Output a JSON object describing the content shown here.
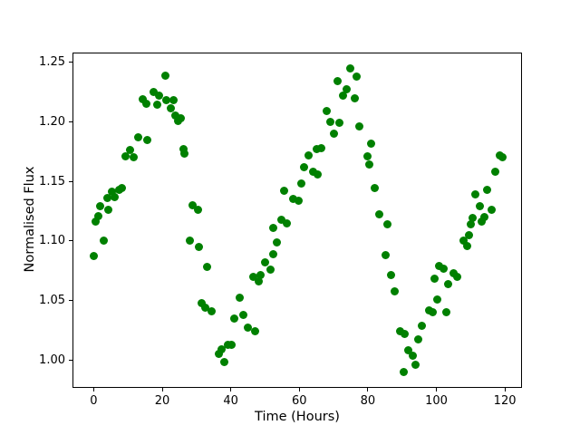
{
  "chart_data": {
    "type": "scatter",
    "title": "",
    "xlabel": "Time (Hours)",
    "ylabel": "Normalised Flux",
    "marker_color": "#008000",
    "marker_diameter_px": 9,
    "grid": false,
    "legend": null,
    "xlim": [
      -6.2,
      125.0
    ],
    "ylim": [
      0.977,
      1.2585
    ],
    "xticks": [
      0,
      20,
      40,
      60,
      80,
      100,
      120
    ],
    "xtick_labels": [
      "0",
      "20",
      "40",
      "60",
      "80",
      "100",
      "120"
    ],
    "yticks": [
      1.0,
      1.05,
      1.1,
      1.15,
      1.2,
      1.25
    ],
    "ytick_labels": [
      "1.00",
      "1.05",
      "1.10",
      "1.15",
      "1.20",
      "1.25"
    ],
    "x_units": "hours",
    "points": [
      [
        0.0,
        1.087
      ],
      [
        0.6,
        1.116
      ],
      [
        1.3,
        1.121
      ],
      [
        1.9,
        1.129
      ],
      [
        2.9,
        1.1
      ],
      [
        3.9,
        1.136
      ],
      [
        4.3,
        1.126
      ],
      [
        5.2,
        1.141
      ],
      [
        6.2,
        1.137
      ],
      [
        7.5,
        1.143
      ],
      [
        8.2,
        1.144
      ],
      [
        9.4,
        1.171
      ],
      [
        10.5,
        1.176
      ],
      [
        11.6,
        1.17
      ],
      [
        13.1,
        1.187
      ],
      [
        14.3,
        1.219
      ],
      [
        15.3,
        1.215
      ],
      [
        15.6,
        1.185
      ],
      [
        17.5,
        1.225
      ],
      [
        18.5,
        1.214
      ],
      [
        19.0,
        1.222
      ],
      [
        20.8,
        1.239
      ],
      [
        21.3,
        1.218
      ],
      [
        22.4,
        1.211
      ],
      [
        23.2,
        1.218
      ],
      [
        23.9,
        1.205
      ],
      [
        24.7,
        1.201
      ],
      [
        25.4,
        1.203
      ],
      [
        26.1,
        1.177
      ],
      [
        26.5,
        1.173
      ],
      [
        28.0,
        1.1
      ],
      [
        28.9,
        1.13
      ],
      [
        30.4,
        1.126
      ],
      [
        30.6,
        1.095
      ],
      [
        31.5,
        1.048
      ],
      [
        32.6,
        1.044
      ],
      [
        33.0,
        1.078
      ],
      [
        34.4,
        1.041
      ],
      [
        36.5,
        1.005
      ],
      [
        37.2,
        1.009
      ],
      [
        38.1,
        0.998
      ],
      [
        39.1,
        1.013
      ],
      [
        40.3,
        1.013
      ],
      [
        41.0,
        1.035
      ],
      [
        42.5,
        1.052
      ],
      [
        43.6,
        1.038
      ],
      [
        45.1,
        1.027
      ],
      [
        46.7,
        1.07
      ],
      [
        47.1,
        1.024
      ],
      [
        48.1,
        1.066
      ],
      [
        48.7,
        1.071
      ],
      [
        50.0,
        1.082
      ],
      [
        51.5,
        1.076
      ],
      [
        52.3,
        1.111
      ],
      [
        52.5,
        1.089
      ],
      [
        53.5,
        1.099
      ],
      [
        54.7,
        1.118
      ],
      [
        55.5,
        1.142
      ],
      [
        56.4,
        1.115
      ],
      [
        58.3,
        1.135
      ],
      [
        59.7,
        1.134
      ],
      [
        60.6,
        1.148
      ],
      [
        61.3,
        1.162
      ],
      [
        62.8,
        1.172
      ],
      [
        63.9,
        1.158
      ],
      [
        65.1,
        1.177
      ],
      [
        65.4,
        1.156
      ],
      [
        66.4,
        1.178
      ],
      [
        67.9,
        1.209
      ],
      [
        69.0,
        1.2
      ],
      [
        70.1,
        1.19
      ],
      [
        71.3,
        1.234
      ],
      [
        71.6,
        1.199
      ],
      [
        72.8,
        1.222
      ],
      [
        73.9,
        1.227
      ],
      [
        74.9,
        1.245
      ],
      [
        76.2,
        1.22
      ],
      [
        76.7,
        1.238
      ],
      [
        77.6,
        1.196
      ],
      [
        80.0,
        1.171
      ],
      [
        80.4,
        1.164
      ],
      [
        80.9,
        1.182
      ],
      [
        82.0,
        1.144
      ],
      [
        83.3,
        1.122
      ],
      [
        85.1,
        1.088
      ],
      [
        85.8,
        1.114
      ],
      [
        86.9,
        1.071
      ],
      [
        87.9,
        1.058
      ],
      [
        89.3,
        1.024
      ],
      [
        90.4,
        0.99
      ],
      [
        90.8,
        1.022
      ],
      [
        91.7,
        1.008
      ],
      [
        93.0,
        1.004
      ],
      [
        94.0,
        0.996
      ],
      [
        94.6,
        1.017
      ],
      [
        95.9,
        1.029
      ],
      [
        97.9,
        1.042
      ],
      [
        98.9,
        1.04
      ],
      [
        99.4,
        1.068
      ],
      [
        100.3,
        1.051
      ],
      [
        100.7,
        1.079
      ],
      [
        102.1,
        1.077
      ],
      [
        102.9,
        1.04
      ],
      [
        103.4,
        1.064
      ],
      [
        105.1,
        1.073
      ],
      [
        106.0,
        1.07
      ],
      [
        107.9,
        1.1
      ],
      [
        109.0,
        1.096
      ],
      [
        109.5,
        1.105
      ],
      [
        110.0,
        1.114
      ],
      [
        110.6,
        1.119
      ],
      [
        111.5,
        1.139
      ],
      [
        112.7,
        1.129
      ],
      [
        113.1,
        1.116
      ],
      [
        114.1,
        1.12
      ],
      [
        114.7,
        1.143
      ],
      [
        116.2,
        1.126
      ],
      [
        117.3,
        1.158
      ],
      [
        118.4,
        1.172
      ],
      [
        119.4,
        1.17
      ]
    ]
  }
}
